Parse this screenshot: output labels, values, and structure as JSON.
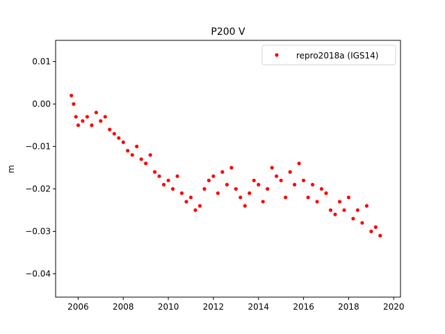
{
  "chart_data": {
    "type": "scatter",
    "title": "P200 V",
    "xlabel": "",
    "ylabel": "m",
    "xlim": [
      2005.0,
      2020.3
    ],
    "ylim": [
      -0.0455,
      0.015
    ],
    "xticks": [
      2006,
      2008,
      2010,
      2012,
      2014,
      2016,
      2018,
      2020
    ],
    "xtick_labels": [
      "2006",
      "2008",
      "2010",
      "2012",
      "2014",
      "2016",
      "2018",
      "2020"
    ],
    "yticks": [
      0.01,
      0.0,
      -0.01,
      -0.02,
      -0.03,
      -0.04
    ],
    "ytick_labels": [
      "0.01",
      "0.00",
      "−0.01",
      "−0.02",
      "−0.03",
      "−0.04"
    ],
    "grid": false,
    "legend_position": "top-right",
    "marker_color": "#ff0000",
    "series": [
      {
        "name": "repro2018a (IGS14)",
        "x": [
          2005.7,
          2005.8,
          2005.9,
          2006.0,
          2006.2,
          2006.4,
          2006.6,
          2006.8,
          2007.0,
          2007.2,
          2007.4,
          2007.6,
          2007.8,
          2008.0,
          2008.2,
          2008.4,
          2008.6,
          2008.8,
          2009.0,
          2009.2,
          2009.4,
          2009.6,
          2009.8,
          2010.0,
          2010.2,
          2010.4,
          2010.6,
          2010.8,
          2011.0,
          2011.2,
          2011.4,
          2011.6,
          2011.8,
          2012.0,
          2012.2,
          2012.4,
          2012.6,
          2012.8,
          2013.0,
          2013.2,
          2013.4,
          2013.6,
          2013.8,
          2014.0,
          2014.2,
          2014.4,
          2014.6,
          2014.8,
          2015.0,
          2015.2,
          2015.4,
          2015.6,
          2015.8,
          2016.0,
          2016.2,
          2016.4,
          2016.6,
          2016.8,
          2017.0,
          2017.2,
          2017.4,
          2017.6,
          2017.8,
          2018.0,
          2018.2,
          2018.4,
          2018.6,
          2018.8,
          2019.0,
          2019.2,
          2019.4
        ],
        "y": [
          0.002,
          0.0,
          -0.003,
          -0.005,
          -0.004,
          -0.003,
          -0.005,
          -0.002,
          -0.004,
          -0.003,
          -0.006,
          -0.007,
          -0.008,
          -0.009,
          -0.011,
          -0.012,
          -0.01,
          -0.013,
          -0.014,
          -0.012,
          -0.016,
          -0.017,
          -0.019,
          -0.018,
          -0.02,
          -0.017,
          -0.021,
          -0.023,
          -0.022,
          -0.025,
          -0.024,
          -0.02,
          -0.018,
          -0.017,
          -0.021,
          -0.016,
          -0.019,
          -0.015,
          -0.02,
          -0.022,
          -0.024,
          -0.021,
          -0.018,
          -0.019,
          -0.023,
          -0.02,
          -0.015,
          -0.017,
          -0.018,
          -0.022,
          -0.016,
          -0.019,
          -0.014,
          -0.018,
          -0.022,
          -0.019,
          -0.023,
          -0.02,
          -0.021,
          -0.025,
          -0.026,
          -0.023,
          -0.025,
          -0.022,
          -0.027,
          -0.025,
          -0.028,
          -0.024,
          -0.03,
          -0.029,
          -0.031
        ]
      }
    ]
  }
}
